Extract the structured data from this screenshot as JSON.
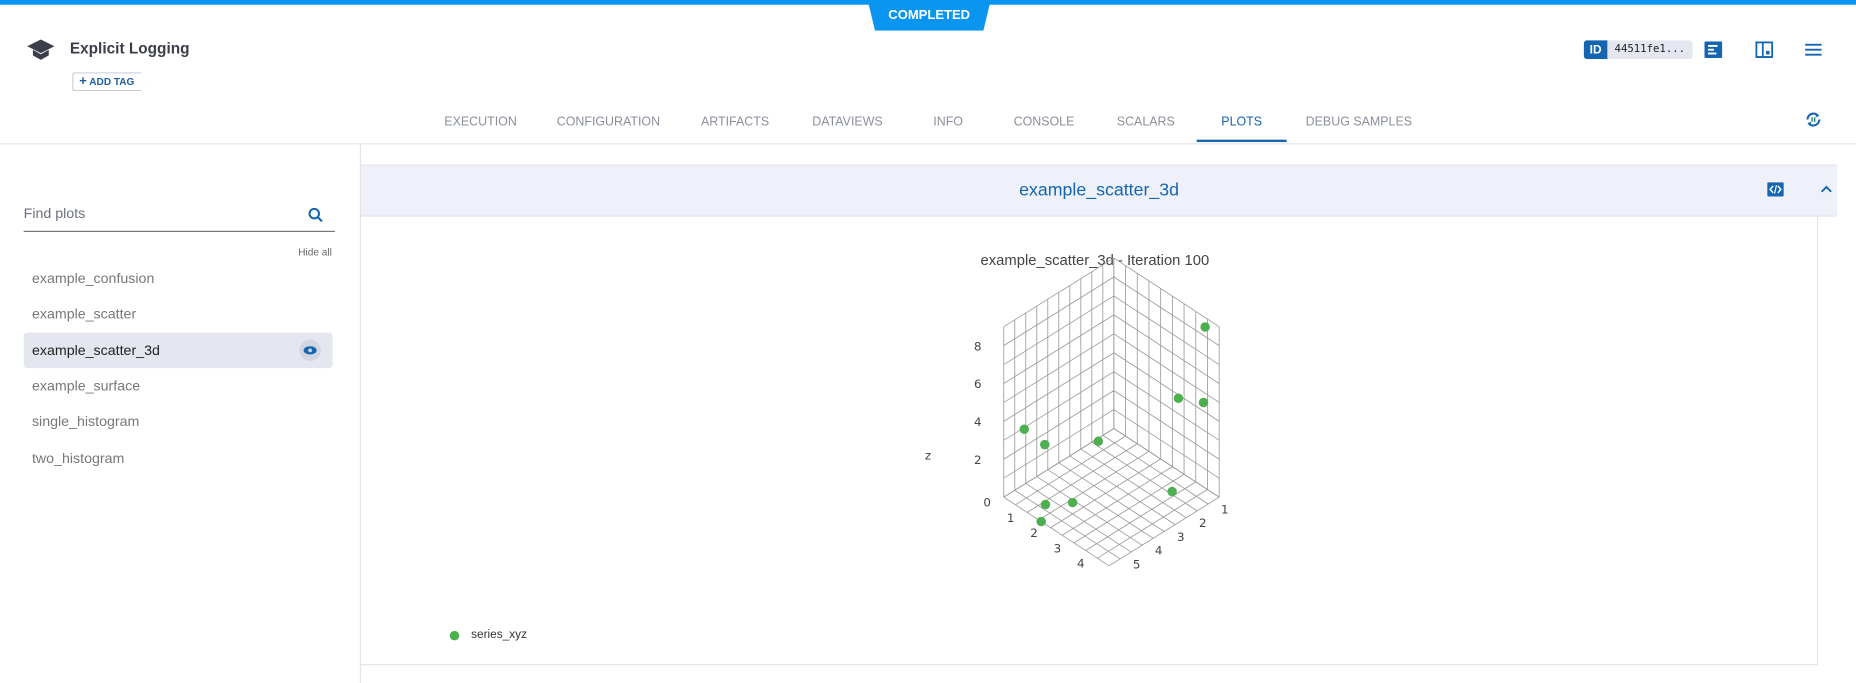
{
  "header": {
    "status": "COMPLETED",
    "title": "Explicit Logging",
    "add_tag": "ADD TAG",
    "id_label": "ID",
    "id_value": "44511fe1...",
    "icons": [
      "graduation-cap-icon",
      "info-panel-icon",
      "layout-icon",
      "menu-icon",
      "refresh-pause-icon"
    ]
  },
  "tabs": [
    {
      "label": "EXECUTION"
    },
    {
      "label": "CONFIGURATION"
    },
    {
      "label": "ARTIFACTS"
    },
    {
      "label": "DATAVIEWS"
    },
    {
      "label": "INFO"
    },
    {
      "label": "CONSOLE"
    },
    {
      "label": "SCALARS"
    },
    {
      "label": "PLOTS",
      "active": true
    },
    {
      "label": "DEBUG SAMPLES"
    }
  ],
  "sidebar": {
    "search_placeholder": "Find plots",
    "hide_all": "Hide all",
    "items": [
      {
        "label": "example_confusion"
      },
      {
        "label": "example_scatter"
      },
      {
        "label": "example_scatter_3d",
        "selected": true
      },
      {
        "label": "example_surface"
      },
      {
        "label": "single_histogram"
      },
      {
        "label": "two_histogram"
      }
    ]
  },
  "panel": {
    "title": "example_scatter_3d"
  },
  "chart_data": {
    "type": "scatter3d",
    "title": "example_scatter_3d - Iteration 100",
    "zlabel": "z",
    "x_ticks": [
      0,
      1,
      2,
      3,
      4
    ],
    "y_ticks": [
      1,
      2,
      3,
      4,
      5
    ],
    "z_ticks": [
      2,
      4,
      6,
      8
    ],
    "xlim": [
      0,
      4.5
    ],
    "ylim": [
      0.5,
      5.5
    ],
    "zlim": [
      0,
      9
    ],
    "grid": true,
    "legend_position": "bottom-left",
    "series": [
      {
        "name": "series_xyz",
        "color": "#4caf50",
        "points": [
          [
            3.9,
            0.5,
            8.5
          ],
          [
            3.7,
            1.5,
            5.3
          ],
          [
            4.3,
            1.0,
            5.2
          ],
          [
            0.5,
            5.1,
            3.7
          ],
          [
            1.0,
            4.7,
            3.0
          ],
          [
            1.5,
            2.8,
            2.2
          ],
          [
            3.9,
            2.0,
            0.9
          ],
          [
            1.5,
            5.2,
            0.6
          ],
          [
            2.0,
            4.5,
            0.6
          ],
          [
            1.6,
            5.5,
            0.0
          ]
        ]
      }
    ]
  }
}
